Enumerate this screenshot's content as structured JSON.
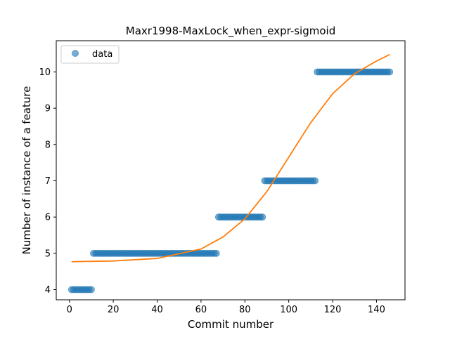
{
  "chart_data": {
    "type": "scatter",
    "title": "Maxr1998-MaxLock_when_expr-sigmoid",
    "xlabel": "Commit number",
    "ylabel": "Number of instance of a feature",
    "xlim": [
      -6,
      153
    ],
    "ylim": [
      3.72,
      10.86
    ],
    "xticks": [
      0,
      20,
      40,
      60,
      80,
      100,
      120,
      140
    ],
    "yticks": [
      4,
      5,
      6,
      7,
      8,
      9,
      10
    ],
    "grid": false,
    "legend": {
      "placement": "top-left",
      "entries": [
        "data"
      ]
    },
    "series": [
      {
        "name": "data",
        "kind": "points",
        "color": "#1f77b4",
        "segments": [
          {
            "x_start": 1,
            "x_end": 10,
            "y": 4
          },
          {
            "x_start": 11,
            "x_end": 67,
            "y": 5
          },
          {
            "x_start": 68,
            "x_end": 88,
            "y": 6
          },
          {
            "x_start": 89,
            "x_end": 112,
            "y": 7
          },
          {
            "x_start": 113,
            "x_end": 146,
            "y": 10
          }
        ]
      },
      {
        "kind": "sigmoid-fit",
        "color": "#ff7f0e",
        "x_range": [
          1,
          146
        ],
        "x": [
          1,
          20,
          40,
          60,
          70,
          80,
          90,
          100,
          110,
          120,
          130,
          140,
          146
        ],
        "y": [
          4.77,
          4.79,
          4.86,
          5.12,
          5.45,
          5.95,
          6.7,
          7.65,
          8.6,
          9.4,
          9.95,
          10.3,
          10.48
        ]
      }
    ]
  }
}
